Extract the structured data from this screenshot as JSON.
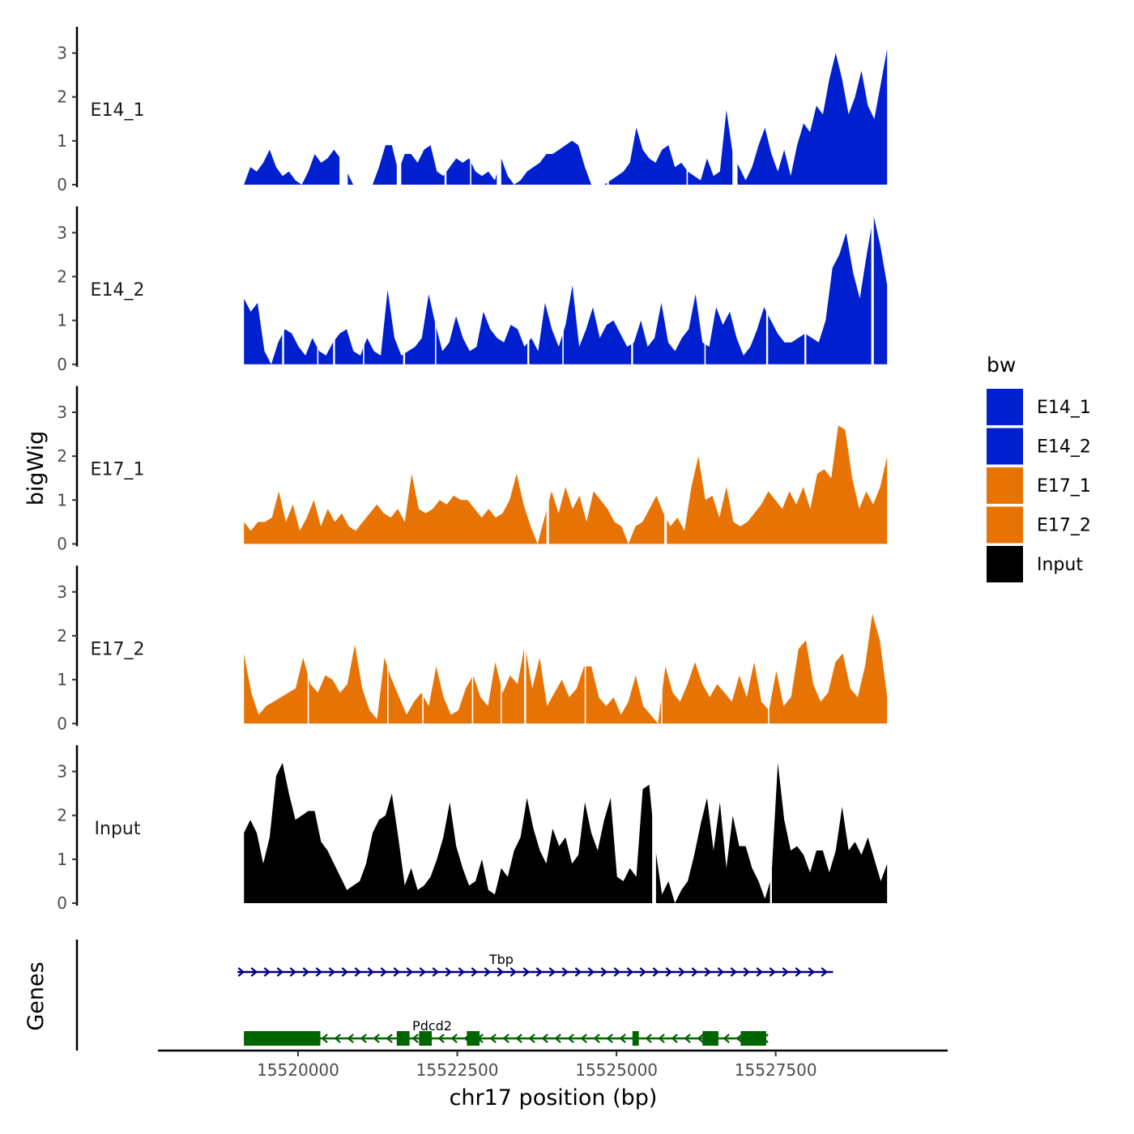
{
  "chart_data": {
    "type": "area",
    "chromosome": "chr17",
    "xlabel": "chr17 position (bp)",
    "ylabel": "bigWig",
    "genes_label": "Genes",
    "xlim": [
      15517800,
      15530200
    ],
    "ylim": [
      0,
      3.6
    ],
    "x_ticks": [
      15520000,
      15522500,
      15525000,
      15527500
    ],
    "x_tick_labels": [
      "15520000",
      "15522500",
      "15525000",
      "15527500"
    ],
    "y_ticks": [
      0,
      1,
      2,
      3
    ],
    "y_tick_labels": [
      "0",
      "1",
      "2",
      "3"
    ],
    "legend": {
      "title": "bw",
      "entries": [
        {
          "label": "E14_1",
          "color": "#0020D0"
        },
        {
          "label": "E14_2",
          "color": "#0020D0"
        },
        {
          "label": "E17_1",
          "color": "#E87305"
        },
        {
          "label": "E17_2",
          "color": "#E87305"
        },
        {
          "label": "Input",
          "color": "#000000"
        }
      ]
    },
    "track_start": 15519150,
    "track_end": 15529250,
    "tracks": [
      {
        "name": "E14_1",
        "color": "#0020D0",
        "values": [
          0,
          0.4,
          0.3,
          0.5,
          0.8,
          0.4,
          0.2,
          0.3,
          0.1,
          0,
          0.3,
          0.7,
          0.5,
          0.6,
          0.8,
          0.6,
          0.3,
          0,
          0,
          0,
          0,
          0.4,
          0.9,
          0.9,
          0.3,
          0.7,
          0.7,
          0.5,
          0.8,
          0.9,
          0.3,
          0.2,
          0.4,
          0.6,
          0.5,
          0.6,
          0.3,
          0.2,
          0.3,
          0.1,
          0.6,
          0.2,
          0,
          0.1,
          0.3,
          0.4,
          0.5,
          0.7,
          0.7,
          0.8,
          0.9,
          1,
          0.9,
          0.4,
          0,
          0,
          0,
          0.1,
          0.2,
          0.3,
          0.5,
          1.3,
          0.8,
          0.6,
          0.5,
          0.8,
          0.9,
          0.4,
          0.5,
          0.3,
          0.2,
          0.1,
          0.6,
          0.2,
          0.3,
          1.7,
          0.7,
          0.4,
          0.1,
          0.4,
          0.9,
          1.3,
          0.7,
          0.3,
          0.8,
          0.2,
          0.9,
          1.4,
          1.2,
          1.8,
          1.6,
          2.4,
          3,
          2.4,
          1.6,
          2.0,
          2.6,
          1.8,
          1.5,
          2.3,
          3.1
        ],
        "missing": [
          [
            15520650,
            15520780
          ],
          [
            15521550,
            15521620
          ],
          [
            15522300,
            15522330
          ],
          [
            15522700,
            15522720
          ],
          [
            15523120,
            15523190
          ],
          [
            15524680,
            15524720
          ],
          [
            15524850,
            15524880
          ],
          [
            15526100,
            15526120
          ],
          [
            15526820,
            15526900
          ]
        ]
      },
      {
        "name": "E14_2",
        "color": "#0020D0",
        "values": [
          1.5,
          1.2,
          1.4,
          0.3,
          0,
          0.5,
          0.8,
          0.7,
          0.4,
          0.2,
          0.6,
          0.3,
          0.2,
          0.5,
          0.7,
          0.8,
          0.3,
          0.2,
          0.6,
          0.3,
          0.2,
          1.7,
          0.6,
          0.2,
          0.3,
          0.4,
          0.6,
          1.6,
          0.9,
          0.3,
          0.5,
          1.1,
          0.6,
          0.3,
          0.4,
          1.2,
          0.8,
          0.6,
          0.5,
          0.9,
          0.8,
          0.4,
          0.6,
          0.3,
          1.4,
          0.8,
          0.4,
          0.9,
          1.8,
          0.4,
          0.8,
          1.3,
          0.6,
          0.9,
          1.0,
          0.7,
          0.4,
          0.5,
          1.0,
          0.4,
          0.6,
          1.4,
          0.5,
          0.3,
          0.6,
          0.8,
          1.6,
          0.5,
          0.4,
          1.3,
          0.9,
          1.2,
          0.6,
          0.2,
          0.4,
          0.8,
          1.3,
          1.0,
          0.7,
          0.5,
          0.5,
          0.6,
          0.7,
          0.6,
          0.5,
          1.0,
          2.2,
          2.5,
          3.0,
          2.1,
          1.5,
          2.5,
          3.4,
          2.7,
          1.8
        ],
        "missing": [
          [
            15519750,
            15519780
          ],
          [
            15520300,
            15520320
          ],
          [
            15520550,
            15520580
          ],
          [
            15521020,
            15521040
          ],
          [
            15521650,
            15521680
          ],
          [
            15522150,
            15522170
          ],
          [
            15523600,
            15523630
          ],
          [
            15524150,
            15524170
          ],
          [
            15525230,
            15525260
          ],
          [
            15526380,
            15526400
          ],
          [
            15527350,
            15527380
          ],
          [
            15527950,
            15527980
          ],
          [
            15529000,
            15529040
          ]
        ]
      },
      {
        "name": "E17_1",
        "color": "#E87305",
        "values": [
          0.5,
          0.3,
          0.5,
          0.5,
          0.6,
          1.2,
          0.5,
          0.9,
          0.3,
          0.6,
          1.0,
          0.4,
          0.8,
          0.5,
          0.7,
          0.4,
          0.3,
          0.5,
          0.7,
          0.9,
          0.7,
          0.6,
          0.8,
          0.5,
          1.6,
          0.8,
          0.7,
          0.8,
          1.0,
          0.9,
          1.1,
          1.0,
          1.0,
          0.8,
          0.6,
          0.8,
          0.6,
          0.7,
          1.0,
          1.6,
          0.9,
          0.4,
          0,
          0.6,
          1.2,
          0.7,
          1.3,
          0.8,
          1.1,
          0.5,
          1.2,
          1.0,
          0.8,
          0.5,
          0.4,
          0,
          0.4,
          0.5,
          0.8,
          1.1,
          0.7,
          0.4,
          0.6,
          0.3,
          1.3,
          2.0,
          1.0,
          1.1,
          0.6,
          1.3,
          0.5,
          0.4,
          0.5,
          0.7,
          0.9,
          1.2,
          1.0,
          0.8,
          1.2,
          0.9,
          1.3,
          0.8,
          1.6,
          1.7,
          1.5,
          2.7,
          2.6,
          1.5,
          0.8,
          1.2,
          0.9,
          1.3,
          2.0
        ],
        "missing": [
          [
            15523900,
            15523940
          ],
          [
            15525750,
            15525790
          ]
        ]
      },
      {
        "name": "E17_2",
        "color": "#E87305",
        "values": [
          1.6,
          0.7,
          0.2,
          0.4,
          0.5,
          0.6,
          0.7,
          0.8,
          1.5,
          0.9,
          0.7,
          1.1,
          1.0,
          0.7,
          0.9,
          1.8,
          0.8,
          0.3,
          0.1,
          1.5,
          1.0,
          0.6,
          0.2,
          0.5,
          0.7,
          0.4,
          1.3,
          0.6,
          0.2,
          0.3,
          0.8,
          1.1,
          0.6,
          0.4,
          1.4,
          0.7,
          1.1,
          0.9,
          1.8,
          0.8,
          1.5,
          0.4,
          0.7,
          1.0,
          0.6,
          0.8,
          1.3,
          1.3,
          0.6,
          0.4,
          0.6,
          0.2,
          0.5,
          1.1,
          0.4,
          0.2,
          0,
          1.3,
          0.7,
          0.5,
          0.9,
          1.4,
          0.9,
          0.6,
          0.9,
          0.7,
          0.5,
          1.1,
          0.6,
          1.4,
          0.5,
          0.3,
          1.2,
          0.4,
          0.6,
          1.7,
          1.9,
          0.9,
          0.5,
          0.7,
          1.4,
          1.6,
          0.8,
          0.6,
          1.3,
          2.5,
          1.9,
          0.6
        ],
        "missing": [
          [
            15520150,
            15520170
          ],
          [
            15521400,
            15521420
          ],
          [
            15521950,
            15521970
          ],
          [
            15522730,
            15522750
          ],
          [
            15523180,
            15523200
          ],
          [
            15523550,
            15523580
          ],
          [
            15524500,
            15524520
          ],
          [
            15525700,
            15525720
          ],
          [
            15527380,
            15527400
          ]
        ]
      },
      {
        "name": "Input",
        "color": "#000000",
        "values": [
          1.6,
          1.9,
          1.6,
          0.9,
          1.5,
          2.9,
          3.2,
          2.5,
          1.9,
          2.0,
          2.1,
          2.1,
          1.4,
          1.2,
          0.9,
          0.6,
          0.3,
          0.4,
          0.5,
          0.9,
          1.6,
          1.9,
          2.0,
          2.5,
          1.5,
          0.4,
          0.8,
          0.3,
          0.4,
          0.6,
          1.0,
          1.5,
          2.3,
          1.3,
          0.8,
          0.4,
          0.5,
          1.0,
          0.3,
          0.2,
          0.8,
          0.6,
          1.2,
          1.5,
          2.4,
          1.7,
          1.2,
          0.9,
          1.7,
          1.3,
          1.5,
          0.9,
          1.1,
          2.3,
          1.6,
          1.2,
          1.9,
          2.4,
          0.6,
          0.5,
          0.8,
          0.6,
          2.6,
          2.7,
          1.2,
          0.2,
          0.5,
          0,
          0.3,
          0.5,
          1.1,
          1.8,
          2.4,
          1.2,
          2.3,
          0.8,
          2.0,
          1.3,
          1.3,
          0.8,
          0.5,
          0.1,
          0.6,
          3.2,
          1.9,
          1.2,
          1.3,
          1.1,
          0.7,
          1.2,
          1.2,
          0.7,
          1.2,
          2.2,
          1.2,
          1.4,
          1.1,
          1.5,
          1.0,
          0.5,
          0.9
        ],
        "missing": [
          [
            15525560,
            15525620
          ],
          [
            15527410,
            15527440
          ]
        ]
      }
    ],
    "genes": [
      {
        "name": "Tbp",
        "strand": "+",
        "color": "#000080",
        "start": 15519050,
        "end": 15528400,
        "exons": []
      },
      {
        "name": "Pdcd2",
        "strand": "-",
        "color": "#006400",
        "start": 15519150,
        "end": 15527350,
        "exons": [
          [
            15519150,
            15520350
          ],
          [
            15521550,
            15521750
          ],
          [
            15521900,
            15522100
          ],
          [
            15522650,
            15522850
          ],
          [
            15525250,
            15525350
          ],
          [
            15526350,
            15526600
          ],
          [
            15526950,
            15527350
          ]
        ]
      }
    ]
  }
}
